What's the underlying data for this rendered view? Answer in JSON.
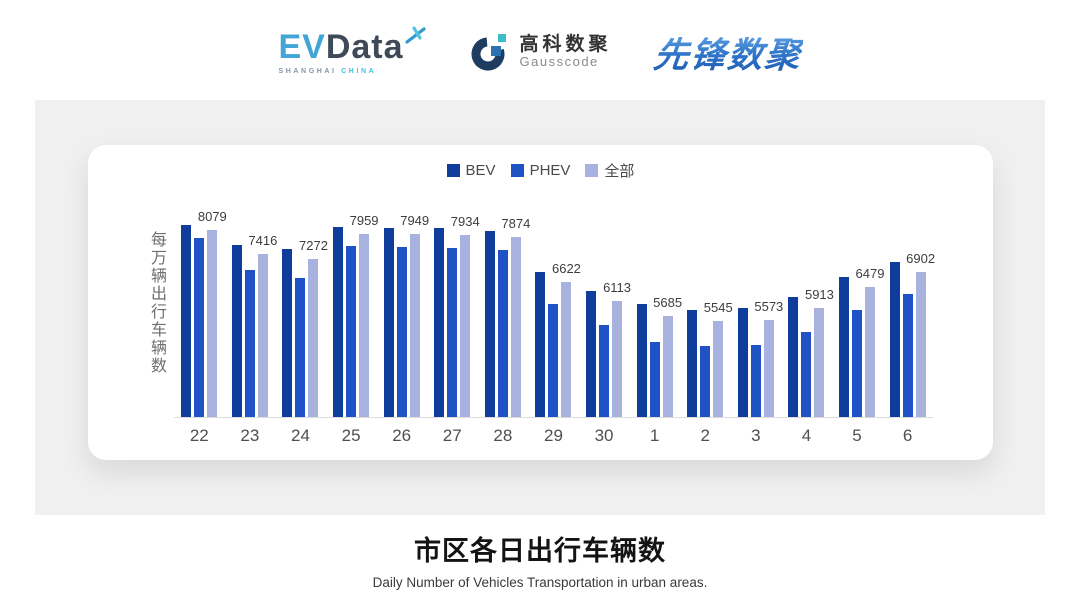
{
  "header": {
    "evdata": {
      "ev": "EV",
      "data": "Data",
      "sub_left": "SHANGHAI",
      "sub_right": "CHINA"
    },
    "gausscode": {
      "cn": "高科数聚",
      "en": "Gausscode"
    },
    "xianfeng": {
      "text": "先锋数聚"
    }
  },
  "chart_data": {
    "type": "bar",
    "title": "",
    "ylabel": "每万辆出行车辆数",
    "xlabel": "",
    "categories": [
      "22",
      "23",
      "24",
      "25",
      "26",
      "27",
      "28",
      "29",
      "30",
      "1",
      "2",
      "3",
      "4",
      "5",
      "6"
    ],
    "series": [
      {
        "key": "bev",
        "name": "BEV",
        "color": "#0e3d9c",
        "values": [
          8215,
          7663,
          7553,
          8160,
          8133,
          8133,
          8050,
          6918,
          6394,
          6035,
          5869,
          5924,
          6228,
          6780,
          7194
        ]
      },
      {
        "key": "phev",
        "name": "PHEV",
        "color": "#1f53c5",
        "values": [
          7856,
          6973,
          6752,
          7636,
          7608,
          7580,
          7525,
          6035,
          5455,
          4986,
          4876,
          4903,
          5262,
          5869,
          6311
        ]
      },
      {
        "key": "all",
        "name": "全部",
        "color": "#a8b2df",
        "values": [
          8079,
          7416,
          7272,
          7959,
          7949,
          7934,
          7874,
          6622,
          6113,
          5685,
          5545,
          5573,
          5913,
          6479,
          6902
        ]
      }
    ],
    "labels": [
      "8079",
      "7416",
      "7272",
      "7959",
      "7949",
      "7934",
      "7874",
      "6622",
      "6113",
      "5685",
      "5545",
      "5573",
      "5913",
      "6479",
      "6902"
    ],
    "labeled_series": "全部",
    "axis_min": 2900,
    "grid": false,
    "legend_position": "top",
    "note": "BEV and PHEV values estimated from bar heights; labels printed on chart belong to 全部 series"
  },
  "footer": {
    "title": "市区各日出行车辆数",
    "subtitle": "Daily Number of Vehicles Transportation in urban areas."
  },
  "colors": {
    "panel_bg": "#f0f0f1",
    "card_bg": "#ffffff",
    "axis_line": "#dcdcdc"
  }
}
